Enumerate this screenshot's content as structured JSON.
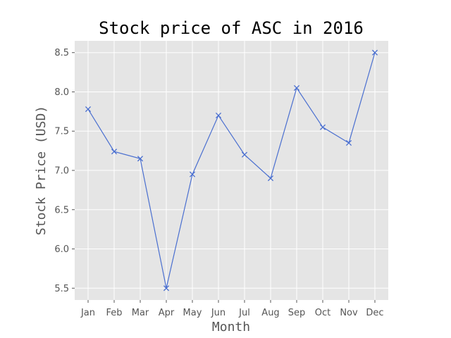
{
  "chart_data": {
    "type": "line",
    "title": "Stock price of ASC in 2016",
    "xlabel": "Month",
    "ylabel": "Stock Price (USD)",
    "categories": [
      "Jan",
      "Feb",
      "Mar",
      "Apr",
      "May",
      "Jun",
      "Jul",
      "Aug",
      "Sep",
      "Oct",
      "Nov",
      "Dec"
    ],
    "series": [
      {
        "values": [
          7.78,
          7.24,
          7.15,
          5.5,
          6.95,
          7.7,
          7.2,
          6.9,
          8.05,
          7.55,
          7.35,
          8.5
        ],
        "color": "#4a6fd0",
        "marker": "x"
      }
    ],
    "yticks": [
      5.5,
      6.0,
      6.5,
      7.0,
      7.5,
      8.0,
      8.5
    ],
    "ylim": [
      5.35,
      8.65
    ],
    "grid": true,
    "plot_background": "#e5e5e5",
    "grid_color": "#ffffff"
  }
}
